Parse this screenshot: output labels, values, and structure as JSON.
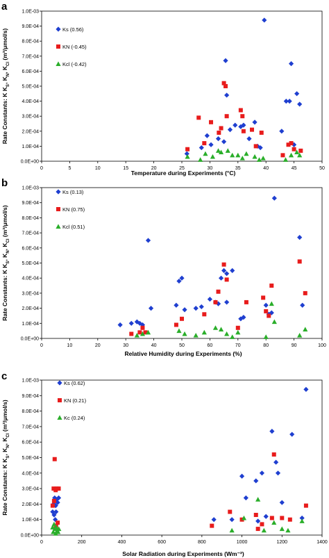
{
  "chart_data": [
    {
      "type": "scatter",
      "panel_label": "a",
      "xlabel": "Temperature during Experiments (°C)",
      "ylabel": "Rate Constants: K",
      "ylabel_subs": [
        "S",
        "N",
        "Cl"
      ],
      "ylabel_unit": "(m³/μmol/s)",
      "xlim": [
        0,
        50
      ],
      "ylim": [
        0,
        0.001
      ],
      "x_ticks": [
        "0",
        "5",
        "10",
        "15",
        "20",
        "25",
        "30",
        "35",
        "40",
        "45",
        "50"
      ],
      "y_ticks": [
        "0.0E+00",
        "1.0E-04",
        "2.0E-04",
        "3.0E-04",
        "4.0E-04",
        "5.0E-04",
        "6.0E-04",
        "7.0E-04",
        "8.0E-04",
        "9.0E-04",
        "1.0E-03"
      ],
      "legend": [
        "Ks (0.56)",
        "KN (-0.45)",
        "Kcl (-0.42)"
      ],
      "series": [
        {
          "name": "Ks (0.56)",
          "marker": "diamond",
          "color": "#1f3fd0",
          "x": [
            25.9,
            28.5,
            29.5,
            30.2,
            31.5,
            32.5,
            32.8,
            33.0,
            33.6,
            34.5,
            35.5,
            36.0,
            37.0,
            38.0,
            38.5,
            39.0,
            39.7,
            42.8,
            43.6,
            44.2,
            44.5,
            45.0,
            45.5,
            46.0
          ],
          "y": [
            5e-05,
            9e-05,
            0.00017,
            0.00011,
            0.00015,
            0.00013,
            0.00067,
            0.00044,
            0.00021,
            0.00024,
            0.00023,
            0.00024,
            0.00015,
            0.00026,
            0.0001,
            9e-05,
            0.00094,
            0.0002,
            0.0004,
            0.0004,
            0.00065,
            0.00011,
            0.00045,
            0.00038
          ]
        },
        {
          "name": "KN (-0.45)",
          "marker": "square",
          "color": "#e81c1c",
          "x": [
            26.0,
            28.0,
            29.0,
            30.2,
            31.6,
            32.0,
            32.5,
            32.8,
            33.0,
            35.5,
            35.8,
            36.0,
            37.5,
            38.2,
            39.2,
            43.0,
            44.0,
            44.5,
            45.0,
            46.2
          ],
          "y": [
            8e-05,
            0.00029,
            0.00012,
            0.00026,
            0.00019,
            0.00022,
            0.00052,
            0.0005,
            0.0003,
            0.00034,
            0.0003,
            0.0002,
            0.00021,
            0.0001,
            0.00019,
            4e-05,
            0.00011,
            0.00012,
            8e-05,
            7e-05
          ]
        },
        {
          "name": "Kcl (-0.42)",
          "marker": "triangle",
          "color": "#2aae2a",
          "x": [
            26.0,
            28.3,
            29.2,
            30.5,
            31.5,
            32.0,
            33.2,
            34.0,
            35.0,
            35.8,
            36.5,
            38.0,
            38.8,
            39.5,
            43.5,
            44.5,
            45.5,
            46.0
          ],
          "y": [
            3e-05,
            1e-05,
            5e-05,
            3e-05,
            7e-05,
            6e-05,
            7e-05,
            4e-05,
            4e-05,
            2e-05,
            5e-05,
            3e-05,
            1e-05,
            2e-05,
            1e-05,
            4e-05,
            6e-05,
            4e-05
          ]
        }
      ]
    },
    {
      "type": "scatter",
      "panel_label": "b",
      "xlabel": "Relative Humidity during Experiments (%)",
      "ylabel": "Rate Constants: K",
      "ylabel_subs": [
        "S",
        "N",
        "Cl"
      ],
      "ylabel_unit": "(m³/μmol/s)",
      "xlim": [
        0,
        100
      ],
      "ylim": [
        0,
        0.001
      ],
      "x_ticks": [
        "0",
        "10",
        "20",
        "30",
        "40",
        "50",
        "60",
        "70",
        "80",
        "90",
        "100"
      ],
      "y_ticks": [
        "0.0E+00",
        "1.0E-04",
        "2.0E-04",
        "3.0E-04",
        "4.0E-04",
        "5.0E-04",
        "6.0E-04",
        "7.0E-04",
        "8.0E-04",
        "9.0E-04",
        "1.0E-03"
      ],
      "legend": [
        "Ks (0.13)",
        "KN (0.75)",
        "Kcl (0.51)"
      ],
      "series": [
        {
          "name": "Ks (0.13)",
          "marker": "diamond",
          "color": "#1f3fd0",
          "x": [
            28,
            32,
            34,
            35,
            36,
            38,
            39,
            48,
            49,
            50,
            51,
            55,
            57,
            60,
            62,
            63,
            64,
            65,
            66,
            66,
            68,
            71,
            72,
            80,
            81,
            82,
            83,
            92,
            93
          ],
          "y": [
            9e-05,
            0.0001,
            0.00011,
            0.0001,
            9e-05,
            0.00065,
            0.0002,
            0.00022,
            0.00038,
            0.0004,
            0.00019,
            0.0002,
            0.00021,
            0.00026,
            0.00024,
            0.00023,
            0.0004,
            0.00045,
            0.00043,
            0.00024,
            0.00045,
            0.00013,
            0.00014,
            0.00022,
            0.00016,
            0.00017,
            0.00093,
            0.00067,
            0.00022
          ]
        },
        {
          "name": "KN (0.75)",
          "marker": "square",
          "color": "#e81c1c",
          "x": [
            32,
            35,
            36,
            37,
            48,
            50,
            58,
            62,
            63,
            65,
            66,
            70,
            73,
            79,
            80,
            81,
            82,
            92,
            94
          ],
          "y": [
            3e-05,
            4e-05,
            7e-05,
            4e-05,
            9e-05,
            0.00013,
            0.00016,
            0.00024,
            0.00031,
            0.00049,
            0.00039,
            7e-05,
            0.00024,
            0.00027,
            0.00018,
            0.00015,
            0.00035,
            0.00051,
            0.0003
          ]
        },
        {
          "name": "Kcl (0.51)",
          "marker": "triangle",
          "color": "#2aae2a",
          "x": [
            34,
            36,
            38,
            49,
            51,
            55,
            58,
            62,
            64,
            66,
            68,
            70,
            80,
            82,
            83,
            92,
            94
          ],
          "y": [
            2e-05,
            3e-05,
            4e-05,
            5e-05,
            3e-05,
            2e-05,
            4e-05,
            7e-05,
            6e-05,
            3e-05,
            1e-05,
            4e-05,
            1e-05,
            0.00023,
            0.00011,
            2e-05,
            6e-05
          ]
        }
      ]
    },
    {
      "type": "scatter",
      "panel_label": "c",
      "xlabel": "Solar Radiation during Experiments (Wm⁻²)",
      "ylabel": "Rate Constants: K",
      "ylabel_subs": [
        "S",
        "N",
        "Cl"
      ],
      "ylabel_unit": "(m³/μmol/s)",
      "xlim": [
        0,
        1400
      ],
      "ylim": [
        0,
        0.001
      ],
      "x_ticks": [
        "0",
        "200",
        "400",
        "600",
        "800",
        "1000",
        "1200",
        "1400"
      ],
      "y_ticks": [
        "0.0E+00",
        "1.0E-04",
        "2.0E-04",
        "3.0E-04",
        "4.0E-04",
        "5.0E-04",
        "6.0E-04",
        "7.0E-04",
        "8.0E-04",
        "9.0E-04",
        "1.0E-03"
      ],
      "legend": [
        "Ks (0.62)",
        "KN (0.21)",
        "Kc (0.24)"
      ],
      "series": [
        {
          "name": "Ks (0.62)",
          "marker": "diamond",
          "color": "#1f3fd0",
          "x": [
            55,
            60,
            62,
            65,
            68,
            70,
            72,
            75,
            80,
            85,
            860,
            950,
            1000,
            1020,
            1070,
            1080,
            1100,
            1120,
            1150,
            1170,
            1180,
            1200,
            1250,
            1300,
            1320
          ],
          "y": [
            0.00015,
            0.0002,
            0.00013,
            0.00024,
            0.0001,
            0.00019,
            0.00015,
            0.00023,
            0.00021,
            0.00024,
            0.0001,
            0.0001,
            0.00038,
            0.00024,
            0.00035,
            9e-05,
            0.0004,
            0.00012,
            0.00067,
            0.00047,
            0.0004,
            0.00021,
            0.00065,
            0.00011,
            0.00094
          ]
        },
        {
          "name": "KN (0.21)",
          "marker": "square",
          "color": "#e81c1c",
          "x": [
            55,
            60,
            62,
            65,
            70,
            72,
            75,
            80,
            85,
            850,
            940,
            1000,
            1070,
            1080,
            1100,
            1150,
            1160,
            1200,
            1240,
            1320
          ],
          "y": [
            0.00019,
            0.0003,
            0.00022,
            0.00049,
            0.00029,
            6e-05,
            0.0003,
            8e-05,
            0.0003,
            6e-05,
            0.00015,
            0.0001,
            0.00013,
            4e-05,
            7e-05,
            0.00011,
            0.00052,
            0.00011,
            0.0001,
            0.00019
          ]
        },
        {
          "name": "Kc (0.24)",
          "marker": "triangle",
          "color": "#2aae2a",
          "x": [
            55,
            58,
            62,
            66,
            70,
            74,
            78,
            82,
            86,
            950,
            1010,
            1080,
            1110,
            1160,
            1200,
            1230,
            1300
          ],
          "y": [
            5e-05,
            2e-05,
            7e-05,
            4e-05,
            1e-05,
            5e-05,
            3e-05,
            2e-05,
            4e-05,
            3e-05,
            0.00011,
            0.00023,
            3e-05,
            8e-05,
            4e-05,
            3e-05,
            9e-05
          ]
        }
      ]
    }
  ]
}
